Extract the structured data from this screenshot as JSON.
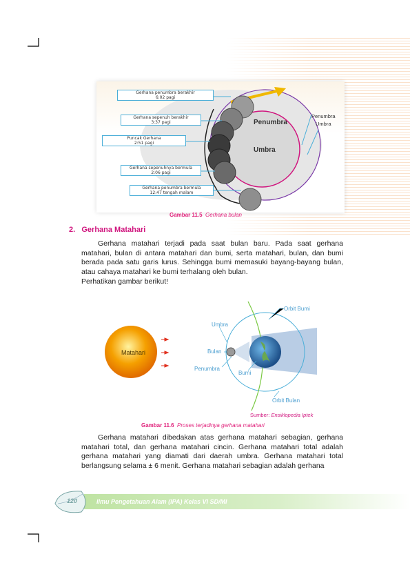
{
  "figure1": {
    "phase_boxes": [
      {
        "line1": "Gerhana penumbra berakhir",
        "line2": "6:02 pagi"
      },
      {
        "line1": "Gerhana sepenuh berakhir",
        "line2": "3:37 pagi"
      },
      {
        "line1": "Puncak Gerhana",
        "line2": "2:51 pagi"
      },
      {
        "line1": "Gerhana sepenuhnya bermula",
        "line2": "2:06 pagi"
      },
      {
        "line1": "Gerhana penumbra bermula",
        "line2": "12:47 tengah malam"
      }
    ],
    "penumbra_label": "Penumbra",
    "umbra_label": "Umbra",
    "side_penumbra_label": "Penumbra",
    "side_umbra_label": "Umbra",
    "caption_number": "Gambar 11.5",
    "caption_text": "Gerhana bulan"
  },
  "section": {
    "number": "2.",
    "title": "Gerhana Matahari"
  },
  "paragraph1": "Gerhana matahari terjadi pada saat bulan baru. Pada saat gerhana matahari, bulan di antara matahari dan bumi, serta matahari, bulan, dan bumi berada pada satu garis lurus. Sehingga bumi memasuki bayang-bayang bulan, atau cahaya matahari ke bumi terhalang oleh bulan.",
  "paragraph2": "Perhatikan gambar berikut!",
  "figure2": {
    "sun_label": "Matahari",
    "orbit_bumi": "Orbit Bumi",
    "umbra": "Umbra",
    "bulan": "Bulan",
    "penumbra": "Penumbra",
    "bumi": "Bumi",
    "orbit_bulan": "Orbit Bulan",
    "source_label": "Sumber:",
    "source_text": "Ensiklopedia Iptek",
    "caption_number": "Gambar 11.6",
    "caption_text": "Proses terjadinya gerhana matahari"
  },
  "paragraph3": "Gerhana matahari dibedakan atas gerhana matahari sebagian, gerhana matahari total, dan gerhana matahari cincin. Gerhana matahari total adalah gerhana matahari yang diamati dari daerah umbra. Gerhana matahari total berlangsung selama ± 6 menit. Gerhana matahari sebagian adalah gerhana",
  "footer": {
    "page_number": "120",
    "book_title": "Ilmu Pengetahuan Alam (IPA) Kelas VI SD/MI"
  },
  "colors": {
    "accent_magenta": "#d0157e",
    "caption_blue": "#4a9ed0",
    "footer_green": "#bfe3a3",
    "sun_orange": "#f5a000"
  }
}
